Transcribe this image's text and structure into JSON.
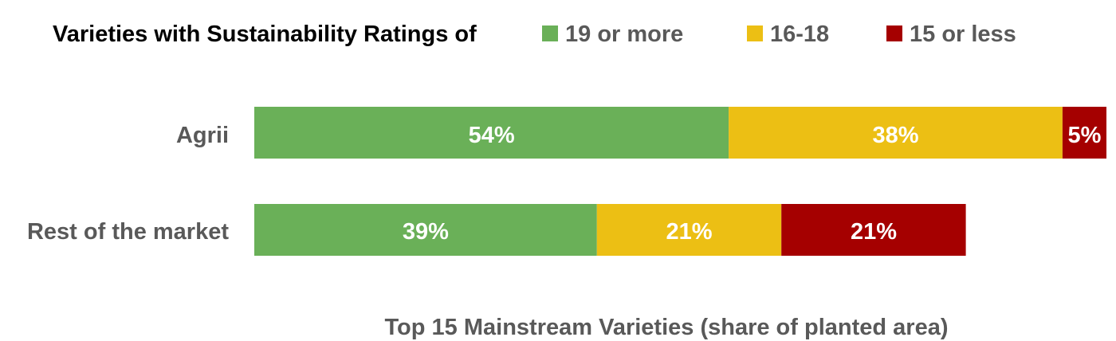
{
  "chart_data": {
    "type": "bar",
    "orientation": "horizontal",
    "stacked": true,
    "legend_title": "Varieties with Sustainability Ratings of",
    "legend_position": "top",
    "categories": [
      "Agrii",
      "Rest of the market"
    ],
    "series": [
      {
        "name": "19 or more",
        "values": [
          54,
          39
        ],
        "labels": [
          "54%",
          "39%"
        ],
        "color": "#6AB058"
      },
      {
        "name": "16-18",
        "values": [
          38,
          21
        ],
        "labels": [
          "38%",
          "21%"
        ],
        "color": "#ECBF14"
      },
      {
        "name": "15 or less",
        "values": [
          5,
          21
        ],
        "labels": [
          "5%",
          "21%"
        ],
        "color": "#A50000"
      }
    ],
    "xlabel": "Top 15 Mainstream Varieties (share of planted area)",
    "ylabel": "",
    "xlim": [
      0,
      97
    ],
    "grid": false
  }
}
